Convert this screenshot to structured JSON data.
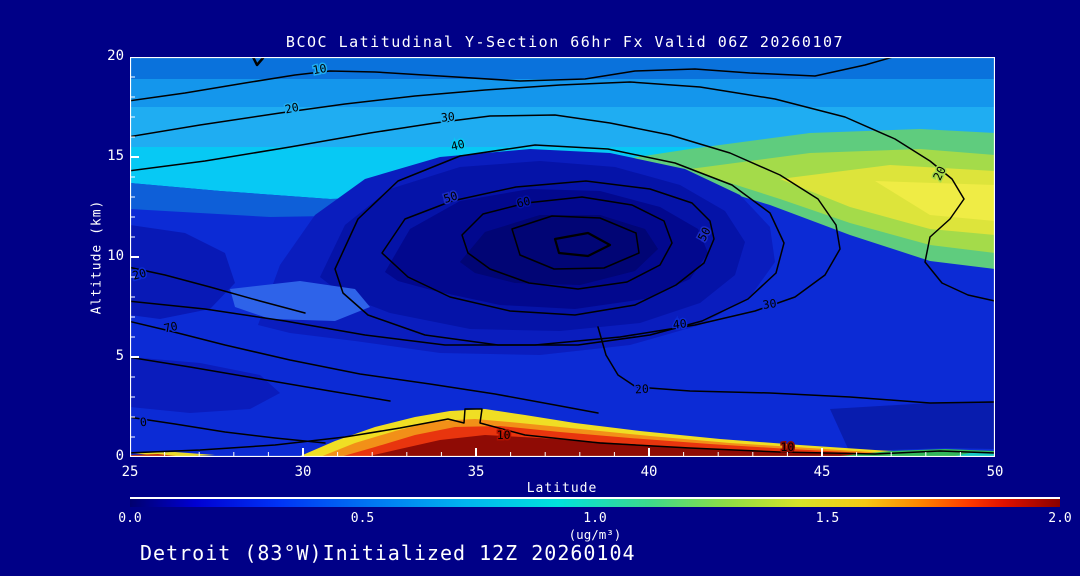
{
  "title": "BCOC Latitudinal Y-Section 66hr  Fx Valid 06Z 20260107",
  "footer": "Detroit (83°W)Initialized 12Z 20260104",
  "axes": {
    "x": {
      "title": "Latitude",
      "min": 25,
      "max": 50,
      "major_ticks": [
        25,
        30,
        35,
        40,
        45,
        50
      ],
      "minor_step": 1
    },
    "y": {
      "title": "Altitude (km)",
      "min": 0,
      "max": 20,
      "major_ticks": [
        0,
        5,
        10,
        15,
        20
      ],
      "minor_step": 1
    }
  },
  "colorbar": {
    "min": 0.0,
    "max": 2.0,
    "tick_labels": [
      "0.0",
      "0.5",
      "1.0",
      "1.5",
      "2.0"
    ],
    "tick_values": [
      0.0,
      0.5,
      1.0,
      1.5,
      2.0
    ],
    "units": "(ug/m³)",
    "gradient": [
      "#00006E 0%",
      "#0000D2 7%",
      "#0033F5 16%",
      "#0077F2 26%",
      "#00B4F0 36%",
      "#00E2DC 46%",
      "#3ED88A 56%",
      "#8CDC46 64%",
      "#D8E428 72%",
      "#F5C814 79%",
      "#FF8400 85%",
      "#FF3C00 90%",
      "#E01000 94%",
      "#8B0000 100%"
    ]
  },
  "chart_data": {
    "type": "heatmap",
    "subtype": "filled-contour-latitude-height-cross-section",
    "title": "BCOC Latitudinal Y-Section 66hr  Fx Valid 06Z 20260107",
    "xlabel": "Latitude",
    "ylabel": "Altitude (km)",
    "xlim": [
      25,
      50
    ],
    "ylim": [
      0,
      20
    ],
    "fill_units": "ug/m3",
    "fill_range": [
      0.0,
      2.0
    ],
    "background_color": "#000087",
    "fill_features": [
      {
        "where": "surface plume lat 32-46, alt 0-1.2 km",
        "value": "~1.8-2.0 (dark red core with red/orange/yellow fringe)"
      },
      {
        "where": "upper-right lat 42-50, alt 11.5-14.5 km",
        "value": "~1.2-1.5 (yellow core in green band)"
      },
      {
        "where": "mid-level band alt 14-17 km full width",
        "value": "~0.8-1.0 (cyan)"
      },
      {
        "where": "dark minimum blob lat 31-41, alt 8-14 km",
        "value": "~0.0-0.2 (near-background navy)"
      },
      {
        "where": "surface strip lat 46-50",
        "value": "~0.6-1.0 (green/cyan)"
      },
      {
        "where": "tiny surface streak lat 25-26.5",
        "value": "~1.3-1.8 (yellow/red sliver)"
      },
      {
        "where": "lower troposphere elsewhere",
        "value": "~0.3-0.5 (medium blue)"
      }
    ],
    "contour_interval": 10,
    "contour_labels": [
      {
        "value": "10",
        "lat": 30.5,
        "alt": 19.2,
        "rot": -10,
        "halo": "#1FADF2"
      },
      {
        "value": "20",
        "lat": 29.7,
        "alt": 17.25,
        "rot": -12,
        "halo": "#1FADF2"
      },
      {
        "value": "30",
        "lat": 34.2,
        "alt": 16.8,
        "rot": -6,
        "halo": "#1FADF2"
      },
      {
        "value": "40",
        "lat": 34.5,
        "alt": 15.4,
        "rot": -14,
        "halo": "#07C9F4"
      },
      {
        "value": "50",
        "lat": 34.3,
        "alt": 12.8,
        "rot": -18,
        "halo": "#1B2CC5"
      },
      {
        "value": "60",
        "lat": 36.4,
        "alt": 12.55,
        "rot": -14,
        "halo": "#0513A8"
      },
      {
        "value": "50",
        "lat": 41.7,
        "alt": 11.05,
        "rot": -62,
        "halo": "#1B2CC5"
      },
      {
        "value": "20",
        "lat": 48.5,
        "alt": 14.1,
        "rot": -64,
        "halo": "#A4DB4A"
      },
      {
        "value": "30",
        "lat": 43.5,
        "alt": 7.45,
        "rot": -8,
        "halo": "#0C2BD5"
      },
      {
        "value": "40",
        "lat": 40.9,
        "alt": 6.45,
        "rot": -6,
        "halo": "#0C2BD5"
      },
      {
        "value": "20",
        "lat": 39.8,
        "alt": 3.2,
        "rot": -3,
        "halo": "#0C2BD5"
      },
      {
        "value": "10",
        "lat": 35.8,
        "alt": 0.9,
        "rot": 0,
        "halo": "#B01000"
      },
      {
        "value": "10",
        "lat": 44.0,
        "alt": 0.3,
        "rot": 0,
        "halo": "#8F0B05"
      },
      {
        "value": "20",
        "lat": 25.3,
        "alt": 8.95,
        "rot": -16,
        "halo": "#0C2BD5"
      },
      {
        "value": "70",
        "lat": 26.2,
        "alt": 6.3,
        "rot": -12,
        "halo": "#0C2BD5"
      },
      {
        "value": "0",
        "lat": 25.4,
        "alt": 1.55,
        "rot": -6,
        "halo": "#0C2BD5"
      }
    ],
    "legend_position": "bottom colorbar",
    "grid": false
  }
}
